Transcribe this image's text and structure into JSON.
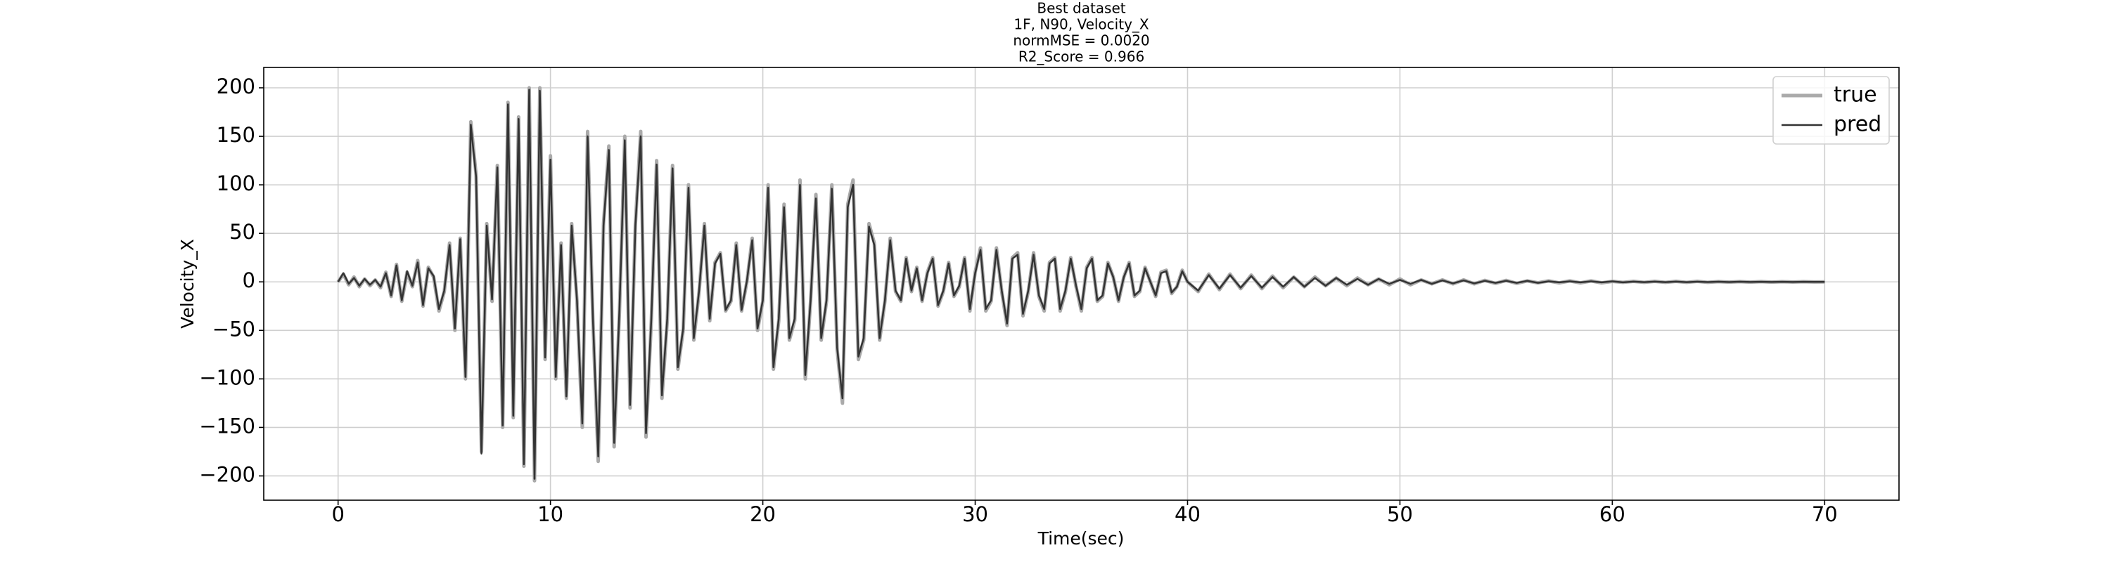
{
  "chart_data": {
    "type": "line",
    "title": [
      "Best dataset",
      "1F, N90, Velocity_X",
      "normMSE = 0.0020",
      "R2_Score = 0.966"
    ],
    "xlabel": "Time(sec)",
    "ylabel": "Velocity_X",
    "xlim": [
      -3.5,
      73.5
    ],
    "ylim": [
      -225,
      221
    ],
    "xticks": [
      0,
      10,
      20,
      30,
      40,
      50,
      60,
      70
    ],
    "yticks": [
      {
        "value": -200,
        "label": "−200"
      },
      {
        "value": -150,
        "label": "−150"
      },
      {
        "value": -100,
        "label": "−100"
      },
      {
        "value": -50,
        "label": "−50"
      },
      0,
      50,
      100,
      150,
      200
    ],
    "grid": true,
    "legend": "upper right",
    "x": [
      0,
      0.25,
      0.5,
      0.75,
      1,
      1.25,
      1.5,
      1.75,
      2,
      2.25,
      2.5,
      2.75,
      3,
      3.25,
      3.5,
      3.75,
      4,
      4.25,
      4.5,
      4.75,
      5,
      5.25,
      5.5,
      5.75,
      6,
      6.25,
      6.5,
      6.75,
      7,
      7.25,
      7.5,
      7.75,
      8,
      8.25,
      8.5,
      8.75,
      9,
      9.25,
      9.5,
      9.75,
      10,
      10.25,
      10.5,
      10.75,
      11,
      11.25,
      11.5,
      11.75,
      12,
      12.25,
      12.5,
      12.75,
      13,
      13.25,
      13.5,
      13.75,
      14,
      14.25,
      14.5,
      14.75,
      15,
      15.25,
      15.5,
      15.75,
      16,
      16.25,
      16.5,
      16.75,
      17,
      17.25,
      17.5,
      17.75,
      18,
      18.25,
      18.5,
      18.75,
      19,
      19.25,
      19.5,
      19.75,
      20,
      20.25,
      20.5,
      20.75,
      21,
      21.25,
      21.5,
      21.75,
      22,
      22.25,
      22.5,
      22.75,
      23,
      23.25,
      23.5,
      23.75,
      24,
      24.25,
      24.5,
      24.75,
      25,
      25.25,
      25.5,
      25.75,
      26,
      26.25,
      26.5,
      26.75,
      27,
      27.25,
      27.5,
      27.75,
      28,
      28.25,
      28.5,
      28.75,
      29,
      29.25,
      29.5,
      29.75,
      30,
      30.25,
      30.5,
      30.75,
      31,
      31.25,
      31.5,
      31.75,
      32,
      32.25,
      32.5,
      32.75,
      33,
      33.25,
      33.5,
      33.75,
      34,
      34.25,
      34.5,
      34.75,
      35,
      35.25,
      35.5,
      35.75,
      36,
      36.25,
      36.5,
      36.75,
      37,
      37.25,
      37.5,
      37.75,
      38,
      38.25,
      38.5,
      38.75,
      39,
      39.25,
      39.5,
      39.75,
      40,
      40.5,
      41,
      41.5,
      42,
      42.5,
      43,
      43.5,
      44,
      44.5,
      45,
      45.5,
      46,
      46.5,
      47,
      47.5,
      48,
      48.5,
      49,
      49.5,
      50,
      50.5,
      51,
      51.5,
      52,
      52.5,
      53,
      53.5,
      54,
      54.5,
      55,
      55.5,
      56,
      56.5,
      57,
      57.5,
      58,
      58.5,
      59,
      59.5,
      60,
      60.5,
      61,
      61.5,
      62,
      62.5,
      63,
      63.5,
      64,
      64.5,
      65,
      65.5,
      66,
      66.5,
      67,
      67.5,
      68,
      68.5,
      69,
      69.5,
      70
    ],
    "series": [
      {
        "name": "true",
        "color": "#aaaaaa",
        "width": 5,
        "values": [
          0,
          8,
          -3,
          5,
          -5,
          3,
          -4,
          2,
          -6,
          10,
          -15,
          18,
          -20,
          10,
          -5,
          22,
          -25,
          15,
          5,
          -30,
          -10,
          40,
          -50,
          45,
          -100,
          165,
          110,
          -175,
          60,
          -20,
          120,
          -150,
          185,
          -140,
          170,
          -190,
          200,
          -205,
          200,
          -80,
          130,
          -100,
          40,
          -120,
          60,
          -20,
          -150,
          155,
          -40,
          -185,
          60,
          140,
          -170,
          -30,
          150,
          -130,
          60,
          155,
          -160,
          -40,
          125,
          -120,
          -40,
          120,
          -90,
          -50,
          100,
          -60,
          -10,
          60,
          -40,
          20,
          30,
          -30,
          -20,
          40,
          -30,
          0,
          45,
          -50,
          -20,
          100,
          -90,
          -40,
          80,
          -60,
          -40,
          105,
          -100,
          -20,
          90,
          -60,
          -20,
          100,
          -70,
          -125,
          80,
          105,
          -80,
          -60,
          60,
          40,
          -60,
          -20,
          45,
          -10,
          -20,
          25,
          -10,
          15,
          -20,
          10,
          25,
          -25,
          -10,
          20,
          -15,
          -5,
          25,
          -30,
          10,
          35,
          -30,
          -20,
          35,
          -10,
          -45,
          25,
          30,
          -35,
          -10,
          30,
          -15,
          -30,
          20,
          25,
          -30,
          -10,
          25,
          -5,
          -30,
          15,
          25,
          -20,
          -15,
          20,
          5,
          -20,
          5,
          20,
          -15,
          -10,
          15,
          0,
          -15,
          10,
          12,
          -12,
          -5,
          12,
          0,
          -10,
          8,
          -8,
          8,
          -7,
          7,
          -7,
          6,
          -6,
          5,
          -5,
          5,
          -4,
          4,
          -4,
          4,
          -3,
          3,
          -3,
          3,
          -3,
          2,
          -2,
          2,
          -2,
          2,
          -2,
          1.5,
          -1.5,
          1.5,
          -1.5,
          1,
          -1,
          1,
          -1,
          1,
          -1,
          1,
          -1,
          0.5,
          -0.5,
          0.5,
          -0.5,
          0.5,
          -0.5,
          0.5,
          -0.5,
          0.5,
          -0.5,
          0.3,
          -0.3,
          0.3,
          -0.3,
          0.3,
          -0.3,
          0.2,
          -0.2,
          0.2,
          -0.1,
          0
        ]
      },
      {
        "name": "pred",
        "color": "#333333",
        "width": 2.5,
        "values": [
          0,
          9,
          -2,
          4,
          -4,
          3,
          -3,
          2,
          -5,
          9,
          -14,
          17,
          -19,
          11,
          -4,
          20,
          -24,
          14,
          6,
          -28,
          -9,
          38,
          -48,
          44,
          -98,
          162,
          108,
          -177,
          58,
          -18,
          118,
          -148,
          183,
          -138,
          168,
          -188,
          198,
          -203,
          197,
          -78,
          126,
          -98,
          38,
          -118,
          58,
          -19,
          -146,
          150,
          -38,
          -180,
          58,
          136,
          -166,
          -28,
          146,
          -127,
          58,
          150,
          -156,
          -38,
          121,
          -117,
          -38,
          117,
          -88,
          -48,
          97,
          -58,
          -9,
          58,
          -38,
          19,
          29,
          -29,
          -19,
          38,
          -29,
          1,
          43,
          -48,
          -19,
          97,
          -88,
          -38,
          77,
          -58,
          -38,
          100,
          -96,
          -19,
          86,
          -58,
          -19,
          96,
          -68,
          -120,
          77,
          100,
          -77,
          -58,
          57,
          38,
          -58,
          -19,
          43,
          -9,
          -19,
          24,
          -9,
          14,
          -19,
          9,
          24,
          -24,
          -9,
          19,
          -14,
          -4,
          24,
          -28,
          9,
          33,
          -28,
          -19,
          33,
          -9,
          -43,
          24,
          28,
          -33,
          -9,
          28,
          -14,
          -28,
          19,
          24,
          -28,
          -9,
          24,
          -4,
          -28,
          14,
          24,
          -19,
          -14,
          19,
          5,
          -19,
          5,
          19,
          -14,
          -9,
          14,
          0,
          -14,
          9,
          11,
          -11,
          -5,
          11,
          0,
          -9,
          7,
          -7,
          7,
          -6,
          6,
          -6,
          5,
          -5,
          5,
          -5,
          4,
          -4,
          4,
          -3,
          3,
          -3,
          3,
          -2,
          2,
          -2,
          2,
          -2,
          1.5,
          -1.5,
          1.5,
          -1.5,
          1,
          -1,
          1,
          -1,
          1,
          -1,
          0.5,
          -0.5,
          0.5,
          -0.5,
          0.5,
          -0.5,
          0.5,
          -0.5,
          0.3,
          -0.3,
          0.3,
          -0.3,
          0.3,
          -0.3,
          0.2,
          -0.2,
          0.2,
          -0.2,
          0.2,
          -0.1,
          0.1,
          -0.1,
          0.1,
          -0.1,
          0.1,
          0,
          0
        ]
      }
    ]
  }
}
